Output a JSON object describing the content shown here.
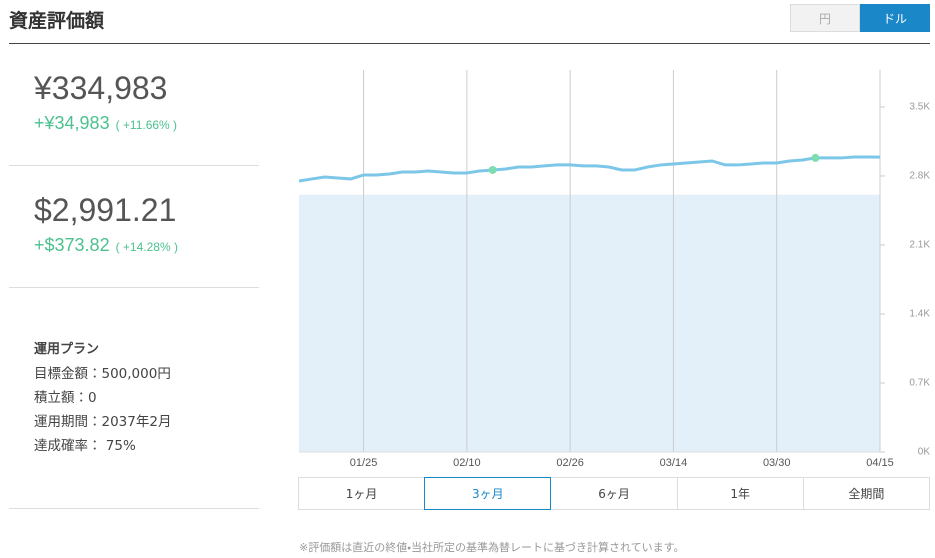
{
  "header": {
    "title": "資産評価額",
    "toggle": [
      "円",
      "ドル"
    ]
  },
  "summary": [
    {
      "value": "¥334,983",
      "gain": "+¥34,983",
      "gain_pct": "( +11.66% )"
    },
    {
      "value": "$2,991.21",
      "gain": "+$373.82",
      "gain_pct": "( +14.28% )"
    }
  ],
  "plan": {
    "heading": "運用プラン",
    "lines": [
      "目標金額：500,000円",
      "積立額：0",
      "運用期間：2037年2月",
      "達成確率： 75%"
    ]
  },
  "chart": {
    "type": "line",
    "color": "#7cc7e8",
    "area_color": "#e3f0fa",
    "area_value": 2610,
    "marker_color": "#7ddcb0",
    "categories": [
      null,
      null,
      null,
      null,
      null,
      "01/25",
      null,
      null,
      null,
      null,
      null,
      null,
      null,
      "02/10",
      null,
      null,
      null,
      null,
      null,
      null,
      null,
      "02/26",
      null,
      null,
      null,
      null,
      null,
      null,
      null,
      "03/14",
      null,
      null,
      null,
      null,
      null,
      null,
      null,
      "03/30",
      null,
      null,
      null,
      null,
      null,
      null,
      null,
      "04/15"
    ],
    "values": [
      2749,
      2770,
      2790,
      2780,
      2770,
      2810,
      2810,
      2820,
      2840,
      2840,
      2851,
      2840,
      2830,
      2830,
      2851,
      2861,
      2871,
      2891,
      2891,
      2902,
      2912,
      2912,
      2902,
      2902,
      2891,
      2861,
      2861,
      2891,
      2912,
      2922,
      2932,
      2942,
      2952,
      2912,
      2912,
      2922,
      2932,
      2932,
      2952,
      2962,
      2983,
      2983,
      2983,
      2993,
      2993,
      2991
    ],
    "marker_indices": [
      15,
      40
    ],
    "ylim": [
      0,
      3875
    ],
    "yticks": [
      {
        "value": 0,
        "label": "0K"
      },
      {
        "value": 700,
        "label": "0.7K"
      },
      {
        "value": 1400,
        "label": "1.4K"
      },
      {
        "value": 2100,
        "label": "2.1K"
      },
      {
        "value": 2800,
        "label": "2.8K"
      },
      {
        "value": 3500,
        "label": "3.5K"
      }
    ]
  },
  "range_buttons": {
    "labels": [
      "1ヶ月",
      "3ヶ月",
      "6ヶ月",
      "1年",
      "全期間"
    ],
    "selected": 1
  },
  "footnote": "※評価額は直近の終値・当社所定の基準為替レートに基づき計算されています。"
}
